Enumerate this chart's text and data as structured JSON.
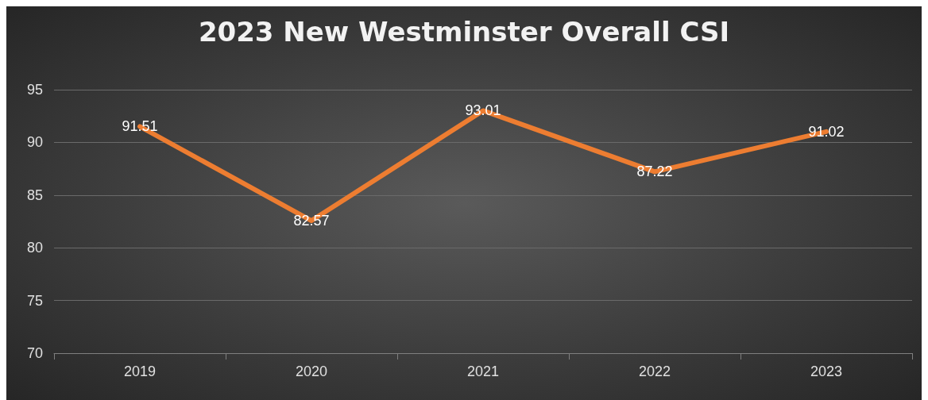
{
  "chart_data": {
    "type": "line",
    "title": "2023 New Westminster Overall CSI",
    "categories": [
      "2019",
      "2020",
      "2021",
      "2022",
      "2023"
    ],
    "series": [
      {
        "color": "#ed7d31",
        "values": [
          91.51,
          82.57,
          93.01,
          87.22,
          91.02
        ]
      }
    ],
    "ylim": [
      70,
      95
    ],
    "yticks": [
      70,
      75,
      80,
      85,
      90,
      95
    ],
    "grid": "y",
    "marker": "none",
    "line_style": "solid",
    "data_labels": true
  }
}
